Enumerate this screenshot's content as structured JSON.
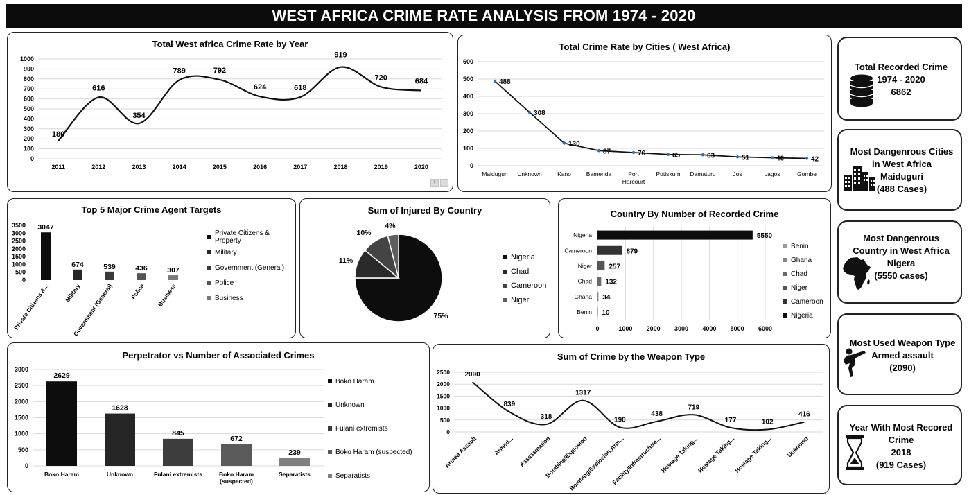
{
  "header": {
    "title": "WEST AFRICA CRIME RATE ANALYSIS FROM 1974 - 2020"
  },
  "kpis": [
    {
      "lines": [
        "Total Recorded Crime",
        "1974 - 2020",
        "6862"
      ],
      "icon": "database-icon"
    },
    {
      "lines": [
        "Most Dangenrous Cities",
        "in West Africa",
        "Maiduguri",
        "(488 Cases)"
      ],
      "icon": "city-buildings-icon"
    },
    {
      "lines": [
        "Most Dangenrous",
        "Country in West Africa",
        "Nigera",
        "(5550 cases)"
      ],
      "icon": "africa-map-icon"
    },
    {
      "lines": [
        "Most Used Weapon Type",
        "Armed assault",
        "(2090)"
      ],
      "icon": "martial-arts-kick-icon"
    },
    {
      "lines": [
        "Year With Most Recored",
        "Crime",
        "2018",
        "(919 Cases)"
      ],
      "icon": "hourglass-icon"
    }
  ],
  "zoom": {
    "plus": "+",
    "minus": "−"
  },
  "colors": {
    "dark": "#0d0d0d",
    "accent_point": "#2f6fb0"
  },
  "chart_data": [
    {
      "id": "yearly",
      "type": "line",
      "title": "Total West africa Crime Rate by Year",
      "categories": [
        "2011",
        "2012",
        "2013",
        "2014",
        "2015",
        "2016",
        "2017",
        "2018",
        "2019",
        "2020"
      ],
      "values": [
        180,
        616,
        354,
        789,
        792,
        624,
        618,
        919,
        720,
        684
      ],
      "yticks": [
        0,
        100,
        200,
        300,
        400,
        500,
        600,
        700,
        800,
        900,
        1000
      ],
      "ylim": [
        0,
        1000
      ],
      "smooth": true,
      "grid": true
    },
    {
      "id": "cities",
      "type": "line",
      "title": "Total Crime Rate by Cities  ( West Africa)",
      "categories": [
        "Maiduguri",
        "Unknown",
        "Kano",
        "Bamenda",
        "Port Harcourt",
        "Potiskum",
        "Damaturu",
        "Jos",
        "Lagos",
        "Gombe"
      ],
      "values": [
        488,
        308,
        130,
        87,
        76,
        65,
        63,
        51,
        46,
        42
      ],
      "yticks": [
        0,
        100,
        200,
        300,
        400,
        500,
        600
      ],
      "ylim": [
        0,
        600
      ],
      "grid": true
    },
    {
      "id": "targets",
      "type": "bar",
      "title": "Top 5 Major Crime Agent Targets",
      "categories": [
        "Private Citizens & Property",
        "Military",
        "Government (General)",
        "Police",
        "Business"
      ],
      "tick_labels": [
        "Private Citizens &...",
        "Military",
        "Government (General)",
        "Police",
        "Business"
      ],
      "values": [
        3047,
        674,
        539,
        436,
        307
      ],
      "colors": [
        "#0d0d0d",
        "#262626",
        "#3a3a3a",
        "#555555",
        "#7a7a7a"
      ],
      "yticks": [
        0,
        500,
        1000,
        1500,
        2000,
        2500,
        3000,
        3500
      ],
      "ylim": [
        0,
        3500
      ],
      "legend": [
        "Private Citizens & Property",
        "Military",
        "Government (General)",
        "Police",
        "Business"
      ],
      "legend_position": "right"
    },
    {
      "id": "injured",
      "type": "pie",
      "title": "Sum of Injured By Country",
      "categories": [
        "Nigeria",
        "Chad",
        "Cameroon",
        "Niger"
      ],
      "values": [
        75,
        11,
        10,
        4
      ],
      "labels": [
        "75%",
        "11%",
        "10%",
        "4%"
      ],
      "colors": [
        "#0d0d0d",
        "#2a2a2a",
        "#444444",
        "#5e5e5e"
      ],
      "legend_position": "right"
    },
    {
      "id": "country",
      "type": "bar",
      "orientation": "horizontal",
      "title": "Country By Number of Recorded Crime",
      "categories": [
        "Nigeria",
        "Cameroon",
        "Niger",
        "Chad",
        "Ghana",
        "Benin"
      ],
      "values": [
        5550,
        879,
        257,
        132,
        34,
        10
      ],
      "colors": [
        "#0d0d0d",
        "#333333",
        "#555555",
        "#6a6a6a",
        "#858585",
        "#9a9a9a"
      ],
      "xticks": [
        0,
        1000,
        2000,
        3000,
        4000,
        5000,
        6000
      ],
      "xlim": [
        0,
        6000
      ],
      "legend": [
        "Benin",
        "Ghana",
        "Chad",
        "Niger",
        "Cameroon",
        "Nigeria"
      ],
      "legend_colors": [
        "#9a9a9a",
        "#858585",
        "#6a6a6a",
        "#555555",
        "#333333",
        "#0d0d0d"
      ],
      "legend_position": "right"
    },
    {
      "id": "perpetrator",
      "type": "bar",
      "title": "Perpetrator vs Number of Associated Crimes",
      "categories": [
        "Boko Haram",
        "Unknown",
        "Fulani extremists",
        "Boko Haram (suspected)",
        "Separatists"
      ],
      "tick_labels": [
        [
          "Boko Haram"
        ],
        [
          "Unknown"
        ],
        [
          "Fulani extremists"
        ],
        [
          "Boko Haram",
          "(suspected)"
        ],
        [
          "Separatists"
        ]
      ],
      "values": [
        2629,
        1628,
        845,
        672,
        239
      ],
      "colors": [
        "#0d0d0d",
        "#262626",
        "#3d3d3d",
        "#5a5a5a",
        "#808080"
      ],
      "yticks": [
        0,
        500,
        1000,
        1500,
        2000,
        2500,
        3000
      ],
      "ylim": [
        0,
        3000
      ],
      "legend": [
        "Boko Haram",
        "Unknown",
        "Fulani extremists",
        "Boko Haram (suspected)",
        "Separatists"
      ],
      "legend_position": "right"
    },
    {
      "id": "weapon",
      "type": "line",
      "title": "Sum of Crime by the Weapon Type",
      "categories": [
        "Armed Assault",
        "Armed...",
        "Assassination",
        "Bombing/Explosion",
        "Bombing/Explosion,Arm...",
        "Facility/Infrastructure...",
        "Hostage Taking...",
        "Hostage Taking...",
        "Hostage Taking...",
        "Unknown"
      ],
      "values": [
        2090,
        839,
        318,
        1317,
        190,
        438,
        719,
        177,
        102,
        416
      ],
      "yticks": [
        0,
        500,
        1000,
        1500,
        2000,
        2500
      ],
      "ylim": [
        0,
        2500
      ],
      "smooth": true,
      "grid": true
    }
  ]
}
